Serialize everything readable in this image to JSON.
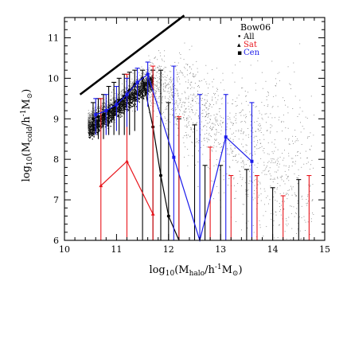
{
  "chart_data": {
    "type": "scatter",
    "title": "",
    "xlabel": "log10(Mhalo/h-1M⊙)",
    "ylabel": "log10(Mcold/h-1M⊙)",
    "xlabel_parts": {
      "pre": "log",
      "sub1": "10",
      "mid": "(M",
      "sub2": "halo",
      "post1": "/h",
      "sup": "-1",
      "post2": "M",
      "sun": "⊙",
      "close": ")"
    },
    "ylabel_parts": {
      "pre": "log",
      "sub1": "10",
      "mid": "(M",
      "sub2": "cold",
      "post1": "/h",
      "sup": "-1",
      "post2": "M",
      "sun": "⊙",
      "close": ")"
    },
    "xlim": [
      10,
      15
    ],
    "ylim": [
      6,
      11.5
    ],
    "xticks": [
      "10",
      "11",
      "12",
      "13",
      "14",
      "15"
    ],
    "yticks": [
      "6",
      "7",
      "8",
      "9",
      "10",
      "11"
    ],
    "legend": {
      "title": "Bow06",
      "placement": "top-right",
      "entries": [
        {
          "label": "All",
          "color": "#000000",
          "symbol": "•"
        },
        {
          "label": "Sat",
          "color": "#e8141b",
          "symbol": "▴"
        },
        {
          "label": "Cen",
          "color": "#1a1aea",
          "symbol": "▪"
        }
      ]
    },
    "reference_line": {
      "x": [
        10.3,
        12.3
      ],
      "y": [
        9.6,
        11.55
      ],
      "color": "#000000"
    },
    "scatter_cloud": {
      "color": "#555555",
      "description_range_x": [
        10.4,
        14.8
      ],
      "description_range_y": [
        6.0,
        10.9
      ]
    },
    "series": [
      {
        "name": "All",
        "color": "#000000",
        "x": [
          10.55,
          10.65,
          10.75,
          10.85,
          10.95,
          11.05,
          11.15,
          11.25,
          11.35,
          11.5,
          11.7,
          11.85,
          12.0,
          12.2
        ],
        "y": [
          9.0,
          9.05,
          9.1,
          9.2,
          9.3,
          9.45,
          9.55,
          9.7,
          9.85,
          10.0,
          8.8,
          7.6,
          6.6,
          5.9
        ],
        "err_lo": [
          8.6,
          8.5,
          8.5,
          8.6,
          8.6,
          8.6,
          8.6,
          8.6,
          8.7,
          6.0,
          6.0,
          6.0,
          6.0,
          6.0
        ],
        "err_hi": [
          9.4,
          9.5,
          9.6,
          9.8,
          9.9,
          10.0,
          10.1,
          10.15,
          10.2,
          10.2,
          10.2,
          10.2,
          9.4,
          9.0
        ],
        "extra_bars": [
          {
            "x": 12.5,
            "lo": 6.0,
            "hi": 8.85
          },
          {
            "x": 12.7,
            "lo": 6.0,
            "hi": 7.85
          },
          {
            "x": 13.0,
            "lo": 6.0,
            "hi": 7.85
          },
          {
            "x": 13.5,
            "lo": 6.0,
            "hi": 7.75
          },
          {
            "x": 14.0,
            "lo": 6.0,
            "hi": 7.3
          },
          {
            "x": 14.5,
            "lo": 6.0,
            "hi": 7.5
          }
        ]
      },
      {
        "name": "Sat",
        "color": "#e8141b",
        "x": [
          10.7,
          11.2,
          11.7
        ],
        "y": [
          7.35,
          7.95,
          6.65
        ],
        "err_lo": [
          6.0,
          6.0,
          6.0
        ],
        "err_hi": [
          9.5,
          10.1,
          10.3
        ],
        "extra_bars": [
          {
            "x": 12.2,
            "lo": 6.0,
            "hi": 9.05
          },
          {
            "x": 12.8,
            "lo": 6.0,
            "hi": 8.3
          },
          {
            "x": 13.2,
            "lo": 6.0,
            "hi": 7.6
          },
          {
            "x": 13.7,
            "lo": 6.0,
            "hi": 7.6
          },
          {
            "x": 14.2,
            "lo": 6.0,
            "hi": 7.1
          },
          {
            "x": 14.7,
            "lo": 6.0,
            "hi": 7.6
          }
        ]
      },
      {
        "name": "Cen",
        "color": "#1a1aea",
        "x": [
          10.6,
          10.8,
          11.0,
          11.2,
          11.4,
          11.6,
          12.1,
          12.6,
          13.1,
          13.6
        ],
        "y": [
          9.1,
          9.2,
          9.35,
          9.6,
          9.9,
          10.1,
          8.05,
          5.95,
          8.55,
          7.95
        ],
        "err_lo": [
          8.6,
          8.6,
          8.7,
          8.8,
          9.2,
          9.3,
          6.0,
          6.0,
          6.0,
          6.0
        ],
        "err_hi": [
          9.5,
          9.6,
          9.8,
          10.0,
          10.25,
          10.4,
          10.3,
          9.6,
          9.6,
          9.4
        ]
      }
    ]
  }
}
